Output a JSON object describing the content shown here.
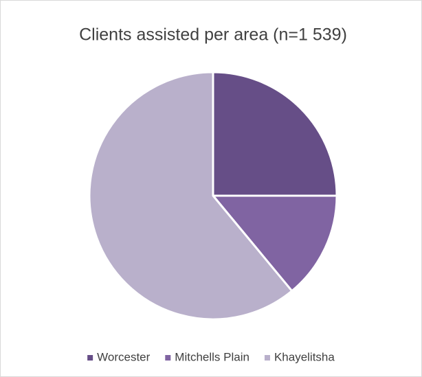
{
  "chart_data": {
    "type": "pie",
    "title": "Clients assisted per area (n=1 539)",
    "categories": [
      "Worcester",
      "Mitchells Plain",
      "Khayelitsha"
    ],
    "values": [
      25,
      14,
      61
    ],
    "colors": [
      "#664e87",
      "#8064a2",
      "#b9b0cb"
    ],
    "legend": "bottom"
  }
}
